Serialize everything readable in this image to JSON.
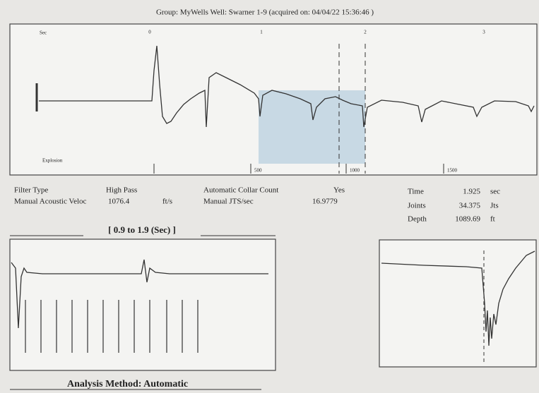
{
  "header": {
    "title": "Group: MyWells     Well: Swarner 1-9 (acquired on: 04/04/22 15:36:46 )"
  },
  "top_plot": {
    "corner_label": "Sec",
    "event_label": "Explosion",
    "markers": [
      "0",
      "1",
      "2",
      "3"
    ],
    "axis_labels": [
      "500",
      "1000",
      "1500"
    ]
  },
  "parameters": {
    "filter_type": {
      "label": "Filter Type",
      "value": "High Pass"
    },
    "acoustic_velocity": {
      "label": "Manual Acoustic Veloc",
      "value": "1076.4",
      "unit": "ft/s"
    },
    "collar_count": {
      "label": "Automatic Collar Count",
      "value": "Yes"
    },
    "jts_per_sec": {
      "label": "Manual JTS/sec",
      "value": "16.9779"
    },
    "time": {
      "label": "Time",
      "value": "1.925",
      "unit": "sec"
    },
    "joints": {
      "label": "Joints",
      "value": "34.375",
      "unit": "Jts"
    },
    "depth": {
      "label": "Depth",
      "value": "1089.69",
      "unit": "ft"
    }
  },
  "zoom_plot": {
    "range_label": "[ 0.9  to  1.9 (Sec) ]"
  },
  "footer": {
    "analysis_method": "Analysis Method:  Automatic"
  }
}
